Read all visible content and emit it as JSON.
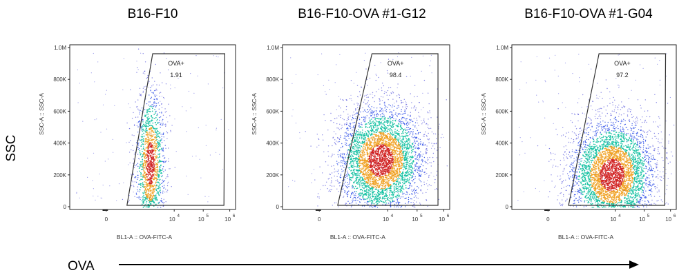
{
  "figure": {
    "y_label": "SSC",
    "x_label": "OVA"
  },
  "chart_data": [
    {
      "type": "scatter",
      "title": "B16-F10",
      "xlabel": "BL1-A :: OVA-FITC-A",
      "ylabel": "SSC-A :: SSC-A",
      "x_scale": "biexponential",
      "x_ticks": [
        "0",
        "10^4",
        "10^5",
        "10^6"
      ],
      "y_ticks": [
        "0",
        "200K",
        "400K",
        "600K",
        "800K",
        "1.0M"
      ],
      "ylim": [
        0,
        1000000
      ],
      "gate": {
        "name": "OVA+",
        "percent": "1.91"
      },
      "population": {
        "x_center_log": 2.6,
        "y_center": 270000,
        "density": "low"
      }
    },
    {
      "type": "scatter",
      "title": "B16-F10-OVA #1-G12",
      "xlabel": "BL1-A :: OVA-FITC-A",
      "ylabel": "SSC-A :: SSC-A",
      "x_scale": "biexponential",
      "x_ticks": [
        "0",
        "10^4",
        "10^5",
        "10^6"
      ],
      "y_ticks": [
        "0",
        "200K",
        "400K",
        "600K",
        "800K",
        "1.0M"
      ],
      "ylim": [
        0,
        1000000
      ],
      "gate": {
        "name": "OVA+",
        "percent": "98.4"
      },
      "population": {
        "x_center_log": 3.6,
        "y_center": 290000,
        "density": "high"
      }
    },
    {
      "type": "scatter",
      "title": "B16-F10-OVA #1-G04",
      "xlabel": "BL1-A :: OVA-FITC-A",
      "ylabel": "SSC-A :: SSC-A",
      "x_scale": "biexponential",
      "x_ticks": [
        "0",
        "10^4",
        "10^5",
        "10^6"
      ],
      "y_ticks": [
        "0",
        "200K",
        "400K",
        "600K",
        "800K",
        "1.0M"
      ],
      "ylim": [
        0,
        1000000
      ],
      "gate": {
        "name": "OVA+",
        "percent": "97.2"
      },
      "population": {
        "x_center_log": 3.8,
        "y_center": 200000,
        "density": "high"
      }
    }
  ],
  "colors": {
    "density_low": "#1f1fd0",
    "density_mid": "#10c0a0",
    "density_high": "#f0a020",
    "density_peak": "#d02020",
    "gate_stroke": "#333333",
    "axis": "#222222"
  }
}
